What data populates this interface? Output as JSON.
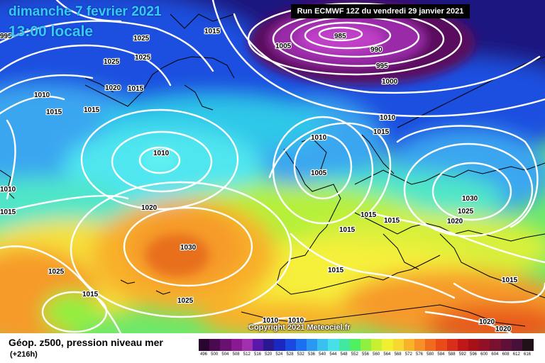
{
  "title": {
    "date": "dimanche 7 fevrier 2021",
    "time": "13:00 locale"
  },
  "run_info": "Run ECMWF 12Z du vendredi 29 janvier 2021",
  "copyright": "Copyright 2021 Meteociel.fr",
  "footer": {
    "title": "Géop. z500, pression niveau mer",
    "hour": "(+216h)"
  },
  "colors": {
    "deep_purple": "#5a0a5e",
    "purple": "#9a2aa8",
    "navy": "#1a1480",
    "blue": "#1f4fe0",
    "light_blue": "#3aa6f0",
    "cyan": "#4fe6f0",
    "green": "#6ee86a",
    "lime": "#b6f03a",
    "yellow": "#f6f03a",
    "orange": "#f69a2a",
    "red_orange": "#e85a1a",
    "isobar": "#ffffff",
    "coastline": "#000000"
  },
  "scale": {
    "labels": [
      "496",
      "500",
      "504",
      "508",
      "512",
      "516",
      "520",
      "524",
      "528",
      "532",
      "536",
      "540",
      "544",
      "548",
      "552",
      "556",
      "560",
      "564",
      "568",
      "572",
      "576",
      "580",
      "584",
      "588",
      "592",
      "596",
      "600",
      "604",
      "608",
      "612",
      "616"
    ],
    "colors": [
      "#2a0530",
      "#4a0a50",
      "#6a1070",
      "#8a1890",
      "#a030b0",
      "#5a18a8",
      "#2a1890",
      "#1a28c0",
      "#1a48e0",
      "#1a70f0",
      "#2a98f0",
      "#3ac0f0",
      "#48e0e8",
      "#40e8a0",
      "#50f060",
      "#90f040",
      "#c8f030",
      "#f0f030",
      "#f8d830",
      "#f8b428",
      "#f89028",
      "#f06a20",
      "#e84a18",
      "#d83018",
      "#c01818",
      "#a81018",
      "#901028",
      "#781030",
      "#601038",
      "#481038",
      "#201018"
    ]
  },
  "isobar_labels": [
    {
      "text": "1015"
    },
    {
      "text": "1005"
    },
    {
      "text": "985"
    },
    {
      "text": "990"
    },
    {
      "text": "995"
    },
    {
      "text": "1000"
    },
    {
      "text": "1010"
    },
    {
      "text": "1015"
    },
    {
      "text": "1025"
    },
    {
      "text": "1025"
    },
    {
      "text": "1025"
    },
    {
      "text": "1020"
    },
    {
      "text": "1015"
    },
    {
      "text": "1010"
    },
    {
      "text": "1015"
    },
    {
      "text": "1015"
    },
    {
      "text": "1010"
    },
    {
      "text": "1010"
    },
    {
      "text": "1005"
    },
    {
      "text": "1010"
    },
    {
      "text": "1020"
    },
    {
      "text": "1030"
    },
    {
      "text": "1025"
    },
    {
      "text": "1015"
    },
    {
      "text": "1025"
    },
    {
      "text": "1010"
    },
    {
      "text": "1010"
    },
    {
      "text": "1015"
    },
    {
      "text": "1015"
    },
    {
      "text": "1015"
    },
    {
      "text": "1030"
    },
    {
      "text": "1025"
    },
    {
      "text": "1020"
    },
    {
      "text": "1015"
    },
    {
      "text": "1015"
    },
    {
      "text": "1020"
    },
    {
      "text": "1020"
    },
    {
      "text": "995"
    },
    {
      "text": "1015"
    }
  ]
}
